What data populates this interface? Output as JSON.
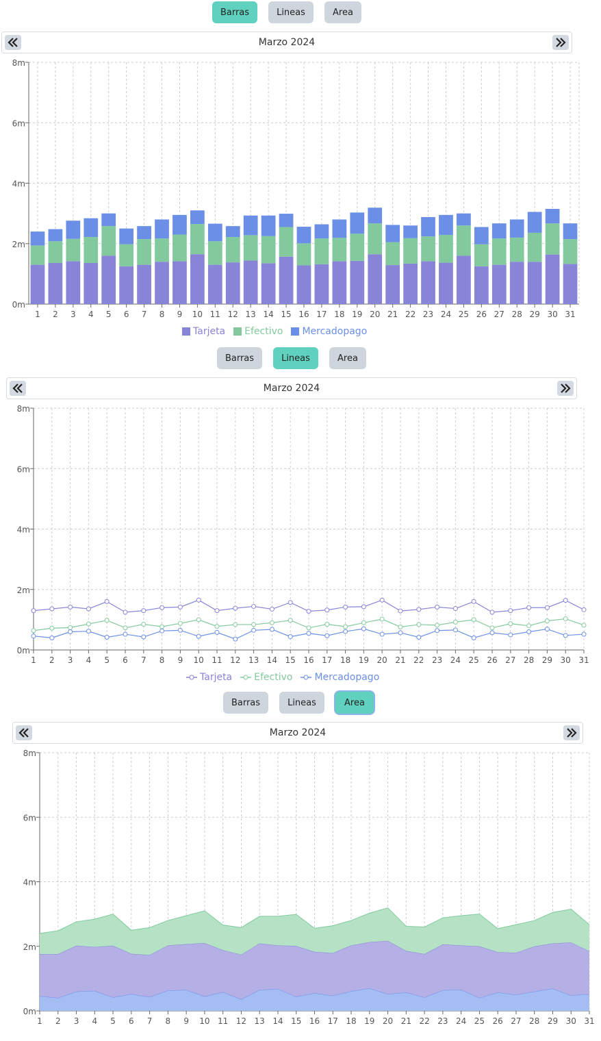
{
  "toggle_labels": [
    "Barras",
    "Lineas",
    "Area"
  ],
  "month_label": "Marzo 2024",
  "colors": {
    "tarjeta": "#8884d8",
    "efectivo": "#82ca9d",
    "mercadopago": "#6b8fe6",
    "area_tarjeta_fill": "#b4b0e6",
    "area_efectivo_fill": "#b5e2c4",
    "area_mercadopago_fill": "#a4bdf3",
    "active_button": "#5fd1be",
    "inactive_button": "#cfd5dd"
  },
  "icons": {
    "prev": "chevrons-left-icon",
    "next": "chevrons-right-icon"
  },
  "chart_data": [
    {
      "type": "bar",
      "stacked": true,
      "selected_view": "Barras",
      "categories": [
        "1",
        "2",
        "3",
        "4",
        "5",
        "6",
        "7",
        "8",
        "9",
        "10",
        "11",
        "12",
        "13",
        "14",
        "15",
        "16",
        "17",
        "18",
        "19",
        "20",
        "21",
        "22",
        "23",
        "24",
        "25",
        "26",
        "27",
        "28",
        "29",
        "30",
        "31"
      ],
      "series": [
        {
          "name": "Tarjeta",
          "values": [
            1.3,
            1.36,
            1.42,
            1.36,
            1.6,
            1.25,
            1.3,
            1.4,
            1.42,
            1.65,
            1.3,
            1.38,
            1.44,
            1.35,
            1.57,
            1.28,
            1.32,
            1.42,
            1.43,
            1.65,
            1.29,
            1.34,
            1.42,
            1.37,
            1.6,
            1.25,
            1.3,
            1.4,
            1.4,
            1.64,
            1.33
          ]
        },
        {
          "name": "Efectivo",
          "values": [
            0.64,
            0.72,
            0.74,
            0.86,
            0.98,
            0.73,
            0.85,
            0.77,
            0.88,
            1.0,
            0.78,
            0.84,
            0.84,
            0.9,
            0.98,
            0.73,
            0.85,
            0.77,
            0.9,
            1.02,
            0.76,
            0.84,
            0.82,
            0.92,
            1.0,
            0.73,
            0.87,
            0.8,
            0.96,
            1.03,
            0.82
          ]
        },
        {
          "name": "Mercadopago",
          "values": [
            0.46,
            0.4,
            0.6,
            0.62,
            0.42,
            0.52,
            0.43,
            0.63,
            0.65,
            0.45,
            0.58,
            0.36,
            0.65,
            0.68,
            0.44,
            0.55,
            0.47,
            0.61,
            0.7,
            0.52,
            0.57,
            0.42,
            0.64,
            0.66,
            0.4,
            0.57,
            0.5,
            0.6,
            0.69,
            0.48,
            0.52
          ]
        }
      ],
      "ylim": [
        0,
        8
      ],
      "yticks": [
        "0m",
        "2m",
        "4m",
        "6m",
        "8m"
      ],
      "grid": true,
      "legend": "bottom"
    },
    {
      "type": "line",
      "selected_view": "Lineas",
      "categories": [
        "1",
        "2",
        "3",
        "4",
        "5",
        "6",
        "7",
        "8",
        "9",
        "10",
        "11",
        "12",
        "13",
        "14",
        "15",
        "16",
        "17",
        "18",
        "19",
        "20",
        "21",
        "22",
        "23",
        "24",
        "25",
        "26",
        "27",
        "28",
        "29",
        "30",
        "31"
      ],
      "series": [
        {
          "name": "Tarjeta",
          "values": [
            1.3,
            1.36,
            1.42,
            1.36,
            1.6,
            1.25,
            1.3,
            1.4,
            1.42,
            1.65,
            1.3,
            1.38,
            1.44,
            1.35,
            1.57,
            1.28,
            1.32,
            1.42,
            1.43,
            1.65,
            1.29,
            1.34,
            1.42,
            1.37,
            1.6,
            1.25,
            1.3,
            1.4,
            1.4,
            1.64,
            1.33
          ]
        },
        {
          "name": "Efectivo",
          "values": [
            0.64,
            0.72,
            0.74,
            0.86,
            0.98,
            0.73,
            0.85,
            0.77,
            0.88,
            1.0,
            0.78,
            0.84,
            0.84,
            0.9,
            0.98,
            0.73,
            0.85,
            0.77,
            0.9,
            1.02,
            0.76,
            0.84,
            0.82,
            0.92,
            1.0,
            0.73,
            0.87,
            0.8,
            0.96,
            1.03,
            0.82
          ]
        },
        {
          "name": "Mercadopago",
          "values": [
            0.46,
            0.4,
            0.6,
            0.62,
            0.42,
            0.52,
            0.43,
            0.63,
            0.65,
            0.45,
            0.58,
            0.36,
            0.65,
            0.68,
            0.44,
            0.55,
            0.47,
            0.61,
            0.7,
            0.52,
            0.57,
            0.42,
            0.64,
            0.66,
            0.4,
            0.57,
            0.5,
            0.6,
            0.69,
            0.48,
            0.52
          ]
        }
      ],
      "ylim": [
        0,
        8
      ],
      "yticks": [
        "0m",
        "2m",
        "4m",
        "6m",
        "8m"
      ],
      "grid": true,
      "legend": "bottom"
    },
    {
      "type": "area",
      "selected_view": "Area",
      "categories": [
        "1",
        "2",
        "3",
        "4",
        "5",
        "6",
        "7",
        "8",
        "9",
        "10",
        "11",
        "12",
        "13",
        "14",
        "15",
        "16",
        "17",
        "18",
        "19",
        "20",
        "21",
        "22",
        "23",
        "24",
        "25",
        "26",
        "27",
        "28",
        "29",
        "30",
        "31"
      ],
      "series": [
        {
          "name": "Mercadopago",
          "values": [
            0.46,
            0.4,
            0.6,
            0.62,
            0.42,
            0.52,
            0.43,
            0.63,
            0.65,
            0.45,
            0.58,
            0.36,
            0.65,
            0.68,
            0.44,
            0.55,
            0.47,
            0.61,
            0.7,
            0.52,
            0.57,
            0.42,
            0.64,
            0.66,
            0.4,
            0.57,
            0.5,
            0.6,
            0.69,
            0.48,
            0.52
          ]
        },
        {
          "name": "Tarjeta",
          "values": [
            1.3,
            1.36,
            1.42,
            1.36,
            1.6,
            1.25,
            1.3,
            1.4,
            1.42,
            1.65,
            1.3,
            1.38,
            1.44,
            1.35,
            1.57,
            1.28,
            1.32,
            1.42,
            1.43,
            1.65,
            1.29,
            1.34,
            1.42,
            1.37,
            1.6,
            1.25,
            1.3,
            1.4,
            1.4,
            1.64,
            1.33
          ]
        },
        {
          "name": "Efectivo",
          "values": [
            0.64,
            0.72,
            0.74,
            0.86,
            0.98,
            0.73,
            0.85,
            0.77,
            0.88,
            1.0,
            0.78,
            0.84,
            0.84,
            0.9,
            0.98,
            0.73,
            0.85,
            0.77,
            0.9,
            1.02,
            0.76,
            0.84,
            0.82,
            0.92,
            1.0,
            0.73,
            0.87,
            0.8,
            0.96,
            1.03,
            0.82
          ]
        }
      ],
      "ylim": [
        0,
        8
      ],
      "yticks": [
        "0m",
        "2m",
        "4m",
        "6m",
        "8m"
      ],
      "grid": true
    }
  ]
}
